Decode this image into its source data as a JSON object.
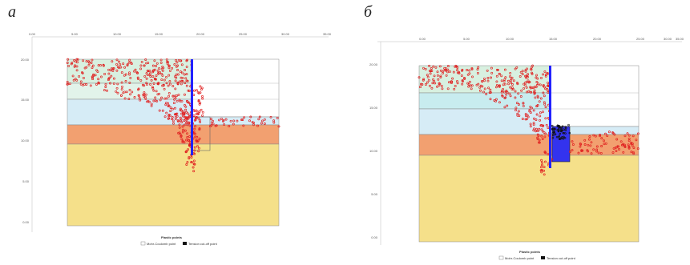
{
  "panels": [
    {
      "letter": "а",
      "x_ticks": [
        "0.00",
        "5.00",
        "10.00",
        "15.00",
        "20.00",
        "25.00",
        "30.00",
        "35.00"
      ],
      "y_ticks": [
        "20.00",
        "15.00",
        "10.00",
        "5.00",
        "0.00"
      ],
      "legend_title": "Plastic points",
      "legend_items": [
        "Mohr-Coulomb point",
        "Tension cut-off point"
      ]
    },
    {
      "letter": "б",
      "x_ticks": [
        "0.00",
        "5.00",
        "10.00",
        "15.00",
        "20.00",
        "25.00",
        "30.00",
        "35.00"
      ],
      "y_ticks": [
        "20.00",
        "15.00",
        "10.00",
        "5.00",
        "0.00"
      ],
      "legend_title": "Plastic points",
      "legend_items": [
        "Mohr-Coulomb point",
        "Tension cut-off point"
      ]
    }
  ],
  "colors": {
    "mohr_coulomb_point": "#e02020",
    "tension_cutoff_point": "#111111",
    "wall": "#2222ff",
    "layer_top": "#d8f0e0",
    "layer_light_blue": "#d6ecf6",
    "layer_orange": "#f2a070",
    "layer_yellow": "#f5e08a"
  }
}
